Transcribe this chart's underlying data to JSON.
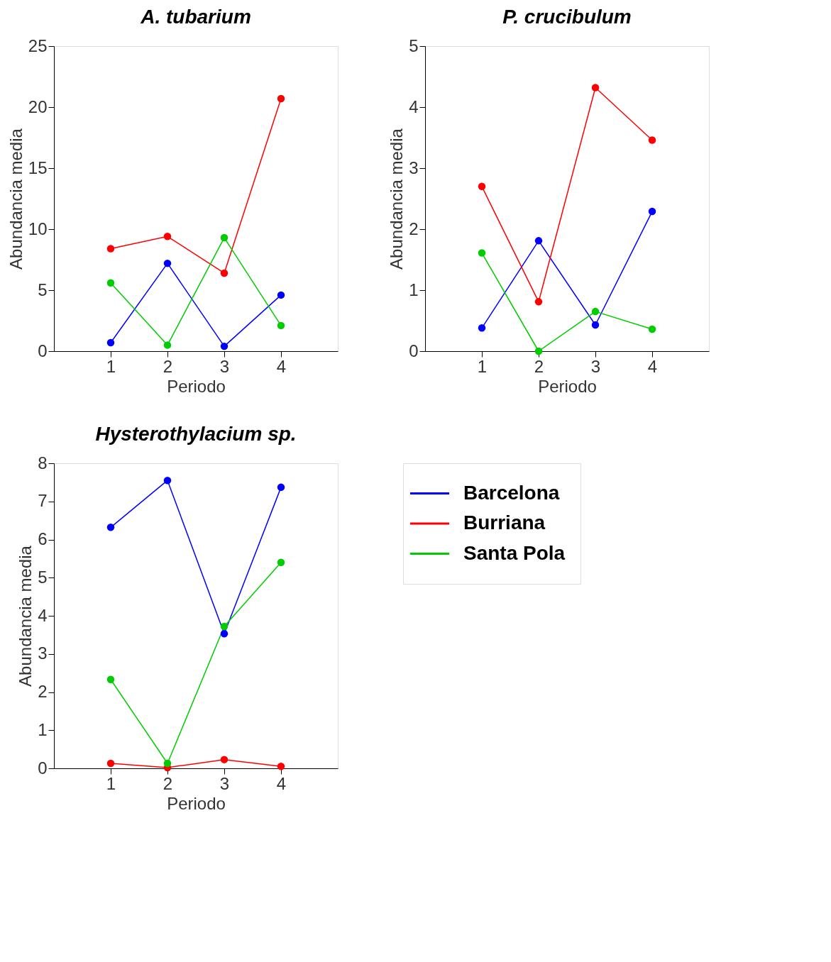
{
  "chart_data": [
    {
      "type": "line",
      "title": "A. tubarium",
      "xlabel": "Periodo",
      "ylabel": "Abundancia media",
      "x": [
        1,
        2,
        3,
        4
      ],
      "xlim": [
        0,
        5
      ],
      "xticks": [
        1,
        2,
        3,
        4
      ],
      "ylim": [
        0,
        25
      ],
      "yticks": [
        0,
        5,
        10,
        15,
        20,
        25
      ],
      "grid": false,
      "marker": "circle",
      "legend": false,
      "series": [
        {
          "color": "#0000ff",
          "values": [
            0.7,
            7.2,
            0.4,
            4.6
          ]
        },
        {
          "color": "#ff0000",
          "values": [
            8.4,
            9.4,
            6.4,
            20.7
          ]
        },
        {
          "color": "#00cc00",
          "values": [
            5.6,
            0.5,
            9.3,
            2.1
          ]
        }
      ]
    },
    {
      "type": "line",
      "title": "P. crucibulum",
      "xlabel": "Periodo",
      "ylabel": "Abundancia media",
      "x": [
        1,
        2,
        3,
        4
      ],
      "xlim": [
        0,
        5
      ],
      "xticks": [
        1,
        2,
        3,
        4
      ],
      "ylim": [
        0,
        5
      ],
      "yticks": [
        0,
        1,
        2,
        3,
        4,
        5
      ],
      "grid": false,
      "marker": "circle",
      "legend": false,
      "series": [
        {
          "color": "#0000ff",
          "values": [
            0.38,
            1.81,
            0.43,
            2.29
          ]
        },
        {
          "color": "#ff0000",
          "values": [
            2.7,
            0.81,
            4.32,
            3.46
          ]
        },
        {
          "color": "#00cc00",
          "values": [
            1.61,
            0,
            0.65,
            0.36
          ]
        }
      ]
    },
    {
      "type": "line",
      "title": "Hysterothylacium sp.",
      "xlabel": "Periodo",
      "ylabel": "Abundancia media",
      "x": [
        1,
        2,
        3,
        4
      ],
      "xlim": [
        0,
        5
      ],
      "xticks": [
        1,
        2,
        3,
        4
      ],
      "ylim": [
        0,
        8
      ],
      "yticks": [
        0,
        1,
        2,
        3,
        4,
        5,
        6,
        7,
        8
      ],
      "grid": false,
      "marker": "circle",
      "legend": "right",
      "series": [
        {
          "name": "Barcelona",
          "color": "#0000ff",
          "values": [
            6.32,
            7.55,
            3.53,
            7.37
          ]
        },
        {
          "name": "Burriana",
          "color": "#ff0000",
          "values": [
            0.13,
            0.02,
            0.23,
            0.05
          ]
        },
        {
          "name": "Santa Pola",
          "color": "#00cc00",
          "values": [
            2.33,
            0.13,
            3.72,
            5.4
          ]
        }
      ]
    }
  ]
}
